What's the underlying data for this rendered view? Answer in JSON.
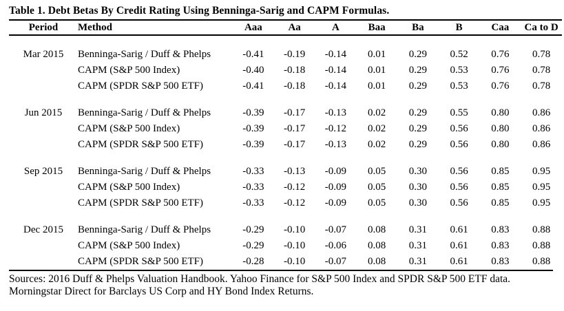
{
  "table": {
    "title": "Table 1. Debt Betas By Credit Rating Using Benninga-Sarig and CAPM Formulas.",
    "columns": [
      "Period",
      "Method",
      "Aaa",
      "Aa",
      "A",
      "Baa",
      "Ba",
      "B",
      "Caa",
      "Ca to D"
    ],
    "groups": [
      {
        "period": "Mar 2015",
        "rows": [
          {
            "method": "Benninga-Sarig / Duff & Phelps",
            "values": [
              "-0.41",
              "-0.19",
              "-0.14",
              "0.01",
              "0.29",
              "0.52",
              "0.76",
              "0.78"
            ]
          },
          {
            "method": "CAPM (S&P 500 Index)",
            "values": [
              "-0.40",
              "-0.18",
              "-0.14",
              "0.01",
              "0.29",
              "0.53",
              "0.76",
              "0.78"
            ]
          },
          {
            "method": "CAPM (SPDR S&P 500 ETF)",
            "values": [
              "-0.41",
              "-0.18",
              "-0.14",
              "0.01",
              "0.29",
              "0.53",
              "0.76",
              "0.78"
            ]
          }
        ]
      },
      {
        "period": "Jun 2015",
        "rows": [
          {
            "method": "Benninga-Sarig / Duff & Phelps",
            "values": [
              "-0.39",
              "-0.17",
              "-0.13",
              "0.02",
              "0.29",
              "0.55",
              "0.80",
              "0.86"
            ]
          },
          {
            "method": "CAPM (S&P 500 Index)",
            "values": [
              "-0.39",
              "-0.17",
              "-0.12",
              "0.02",
              "0.29",
              "0.56",
              "0.80",
              "0.86"
            ]
          },
          {
            "method": "CAPM (SPDR S&P 500 ETF)",
            "values": [
              "-0.39",
              "-0.17",
              "-0.13",
              "0.02",
              "0.29",
              "0.56",
              "0.80",
              "0.86"
            ]
          }
        ]
      },
      {
        "period": "Sep 2015",
        "rows": [
          {
            "method": "Benninga-Sarig / Duff & Phelps",
            "values": [
              "-0.33",
              "-0.13",
              "-0.09",
              "0.05",
              "0.30",
              "0.56",
              "0.85",
              "0.95"
            ]
          },
          {
            "method": "CAPM (S&P 500 Index)",
            "values": [
              "-0.33",
              "-0.12",
              "-0.09",
              "0.05",
              "0.30",
              "0.56",
              "0.85",
              "0.95"
            ]
          },
          {
            "method": "CAPM (SPDR S&P 500 ETF)",
            "values": [
              "-0.33",
              "-0.12",
              "-0.09",
              "0.05",
              "0.30",
              "0.56",
              "0.85",
              "0.95"
            ]
          }
        ]
      },
      {
        "period": "Dec 2015",
        "rows": [
          {
            "method": "Benninga-Sarig / Duff & Phelps",
            "values": [
              "-0.29",
              "-0.10",
              "-0.07",
              "0.08",
              "0.31",
              "0.61",
              "0.83",
              "0.88"
            ]
          },
          {
            "method": "CAPM (S&P 500 Index)",
            "values": [
              "-0.29",
              "-0.10",
              "-0.06",
              "0.08",
              "0.31",
              "0.61",
              "0.83",
              "0.88"
            ]
          },
          {
            "method": "CAPM (SPDR S&P 500 ETF)",
            "values": [
              "-0.28",
              "-0.10",
              "-0.07",
              "0.08",
              "0.31",
              "0.61",
              "0.83",
              "0.88"
            ]
          }
        ]
      }
    ],
    "sources": "Sources: 2016 Duff & Phelps Valuation Handbook. Yahoo Finance for S&P 500 Index and SPDR S&P 500 ETF data. Morningstar Direct for Barclays US Corp and HY Bond Index Returns.",
    "colors": {
      "text": "#000000",
      "background": "#ffffff",
      "rule": "#000000"
    }
  }
}
